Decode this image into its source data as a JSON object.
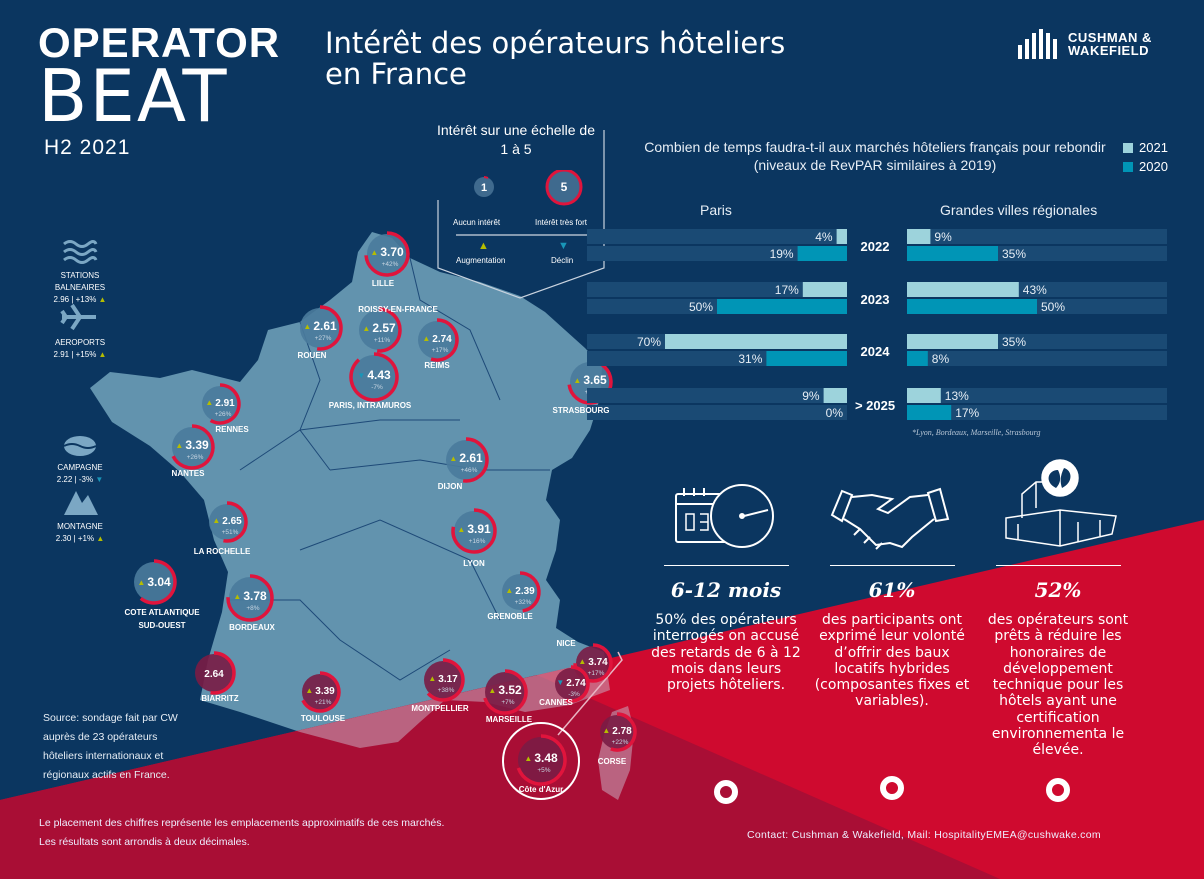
{
  "brand": {
    "line1": "OPERATOR",
    "line2": "BEAT",
    "period": "H2 2021",
    "logo": "CUSHMAN & WAKEFIELD",
    "logo_line1": "CUSHMAN &",
    "logo_line2": "WAKEFIELD"
  },
  "title": {
    "line1": "Intérêt des opérateurs hôteliers",
    "line2": "en France"
  },
  "scale_legend": {
    "title": "Intérêt sur une échelle de 1 à 5",
    "min_value": "1",
    "max_value": "5",
    "min_label": "Aucun intérêt",
    "max_label": "Intérêt très fort",
    "up_label": "Augmentation",
    "down_label": "Déclin",
    "up_color": "#b5bd00",
    "down_color": "#1996b8"
  },
  "categories": [
    {
      "icon": "waves-icon",
      "name_line1": "STATIONS",
      "name_line2": "BALNEAIRES",
      "value": "2.96 | +13%",
      "trend": "up"
    },
    {
      "icon": "airplane-icon",
      "name_line1": "AEROPORTS",
      "name_line2": "",
      "value": "2.91 | +15%",
      "trend": "up"
    },
    {
      "icon": "countryside-icon",
      "name_line1": "CAMPAGNE",
      "name_line2": "",
      "value": "2.22 | -3%",
      "trend": "down"
    },
    {
      "icon": "mountain-icon",
      "name_line1": "MONTAGNE",
      "name_line2": "",
      "value": "2.30 | +1%",
      "trend": "up"
    }
  ],
  "markets": [
    {
      "name": "LILLE",
      "score": "3.70",
      "change": "+42%",
      "trend": "up"
    },
    {
      "name": "ROUEN",
      "score": "2.61",
      "change": "+27%",
      "trend": "up"
    },
    {
      "name": "ROISSY-EN-FRANCE",
      "score": "2.57",
      "change": "+11%",
      "trend": "up"
    },
    {
      "name": "PARIS, INTRAMUROS",
      "score": "4.43",
      "change": "-7%",
      "trend": "down"
    },
    {
      "name": "REIMS",
      "score": "2.74",
      "change": "+17%",
      "trend": "up"
    },
    {
      "name": "STRASBOURG",
      "score": "3.65",
      "change": "+33%",
      "trend": "up"
    },
    {
      "name": "RENNES",
      "score": "2.91",
      "change": "+26%",
      "trend": "up"
    },
    {
      "name": "NANTES",
      "score": "3.39",
      "change": "+26%",
      "trend": "up"
    },
    {
      "name": "DIJON",
      "score": "2.61",
      "change": "+46%",
      "trend": "up"
    },
    {
      "name": "LA ROCHELLE",
      "score": "2.65",
      "change": "+51%",
      "trend": "up"
    },
    {
      "name": "LYON",
      "score": "3.91",
      "change": "+16%",
      "trend": "up"
    },
    {
      "name": "COTE ATLANTIQUE SUD-OUEST",
      "score": "3.04",
      "change": "",
      "trend": "up"
    },
    {
      "name": "BORDEAUX",
      "score": "3.78",
      "change": "+8%",
      "trend": "up"
    },
    {
      "name": "GRENOBLE",
      "score": "2.39",
      "change": "+32%",
      "trend": "up"
    },
    {
      "name": "NICE",
      "score": "3.74",
      "change": "+17%",
      "trend": "up"
    },
    {
      "name": "CANNES",
      "score": "2.74",
      "change": "-3%",
      "trend": "down"
    },
    {
      "name": "BIARRITZ",
      "score": "2.64",
      "change": "",
      "trend": "none"
    },
    {
      "name": "TOULOUSE",
      "score": "3.39",
      "change": "+21%",
      "trend": "up"
    },
    {
      "name": "MONTPELLIER",
      "score": "3.17",
      "change": "+38%",
      "trend": "up"
    },
    {
      "name": "MARSEILLE",
      "score": "3.52",
      "change": "+7%",
      "trend": "up"
    },
    {
      "name": "CORSE",
      "score": "2.78",
      "change": "+22%",
      "trend": "up"
    },
    {
      "name": "Côte d'Azur",
      "score": "3.48",
      "change": "+5%",
      "trend": "up"
    }
  ],
  "recovery": {
    "question": "Combien de temps faudra-t-il aux marchés hôteliers français pour rebondir (niveaux de RevPAR similaires à 2019)",
    "footnote": "*Lyon, Bordeaux, Marseille, Strasbourg"
  },
  "chart_data": {
    "type": "bar",
    "orientation": "horizontal",
    "categories": [
      "2022",
      "2023",
      "2024",
      "> 2025"
    ],
    "panels": [
      {
        "title": "Paris",
        "series": [
          {
            "name": "2021",
            "values": [
              4,
              17,
              70,
              9
            ]
          },
          {
            "name": "2020",
            "values": [
              19,
              50,
              31,
              0
            ]
          }
        ]
      },
      {
        "title": "Grandes villes régionales",
        "series": [
          {
            "name": "2021",
            "values": [
              9,
              43,
              35,
              13
            ]
          },
          {
            "name": "2020",
            "values": [
              35,
              50,
              8,
              17
            ]
          }
        ]
      }
    ],
    "unit": "%",
    "legend": "top-right",
    "colors": {
      "2021": "#9dd3dc",
      "2020": "#0095b6"
    }
  },
  "stats": [
    {
      "icon": "calendar-clock-icon",
      "headline": "6-12 mois",
      "text": "50% des opérateurs interrogés on accusé des retards de 6 à 12 mois dans leurs projets hôteliers."
    },
    {
      "icon": "handshake-icon",
      "headline": "61%",
      "text": "des participants ont exprimé leur volonté d’offrir des baux locatifs hybrides (composantes fixes et variables)."
    },
    {
      "icon": "green-building-icon",
      "headline": "52%",
      "text": "des opérateurs sont prêts à réduire les honoraires de développement technique pour les hôtels ayant une certification environnementa le élevée."
    }
  ],
  "source": "Source: sondage fait par CW auprès de 23 opérateurs hôteliers internationaux et régionaux actifs en France.",
  "footer": {
    "line1": "Le placement des chiffres représente les emplacements approximatifs de ces marchés.",
    "line2": "Les résultats sont arrondis à deux décimales.",
    "contact": "Contact: Cushman & Wakefield, Mail: HospitalityEMEA@cushwake.com"
  },
  "colors": {
    "navy": "#0b3660",
    "red": "#cf0a2f",
    "dark_red": "#a90e35",
    "map": "#6293ae"
  }
}
